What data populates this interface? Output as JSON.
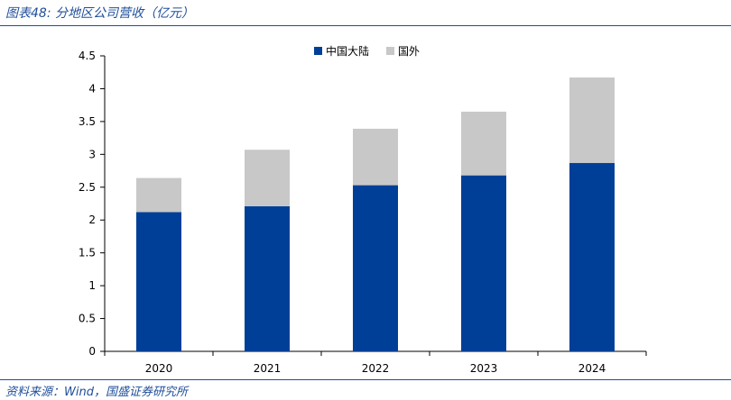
{
  "header": {
    "title": "图表48: 分地区公司营收（亿元）"
  },
  "footer": {
    "source": "资料来源：Wind，国盛证券研究所"
  },
  "colors": {
    "accent": "#1f4e9a",
    "mainland": "#003f98",
    "overseas": "#c8c8c8"
  },
  "chart_data": {
    "type": "bar",
    "stacked": true,
    "categories": [
      "2020",
      "2021",
      "2022",
      "2023",
      "2024"
    ],
    "series": [
      {
        "name": "中国大陆",
        "values": [
          2.12,
          2.21,
          2.53,
          2.68,
          2.87
        ],
        "color": "#003f98"
      },
      {
        "name": "国外",
        "values": [
          0.52,
          0.86,
          0.86,
          0.97,
          1.3
        ],
        "color": "#c8c8c8"
      }
    ],
    "ylim": [
      0,
      4.5
    ],
    "yticks": [
      "0",
      "0.5",
      "1",
      "1.5",
      "2",
      "2.5",
      "3",
      "3.5",
      "4",
      "4.5"
    ],
    "grid": false,
    "legend": "top-center",
    "title": "",
    "xlabel": "",
    "ylabel": ""
  }
}
